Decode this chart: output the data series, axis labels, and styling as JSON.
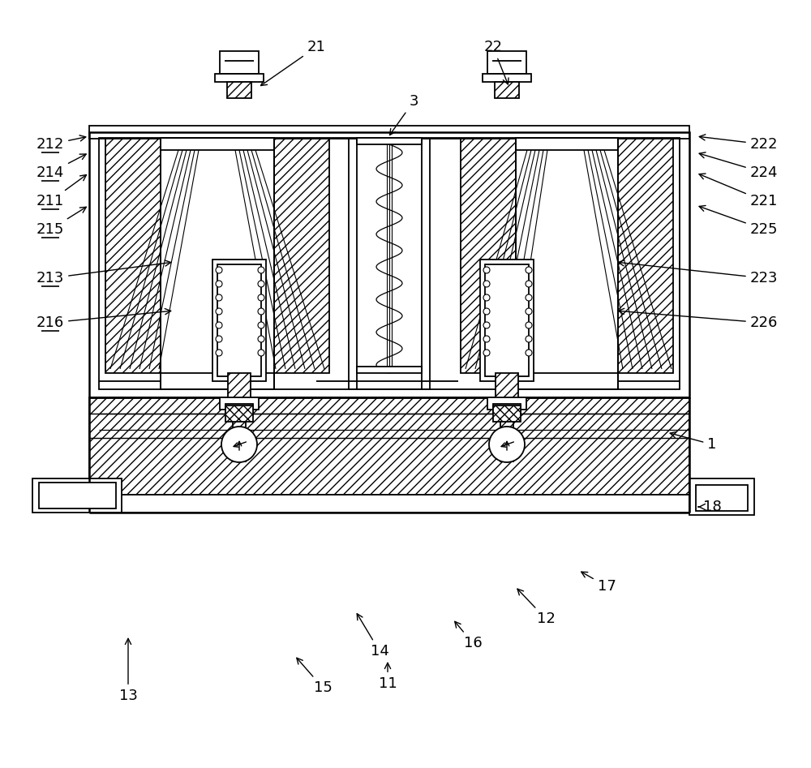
{
  "background": "#ffffff",
  "line_color": "#000000",
  "figsize": [
    10.0,
    9.47
  ],
  "dpi": 100,
  "underlined_labels": [
    "212",
    "214",
    "211",
    "215",
    "213",
    "216"
  ],
  "label_data": [
    [
      "21",
      390,
      58,
      318,
      108
    ],
    [
      "22",
      608,
      58,
      628,
      108
    ],
    [
      "3",
      510,
      125,
      478,
      170
    ],
    [
      "212",
      62,
      178,
      110,
      168
    ],
    [
      "214",
      62,
      213,
      110,
      188
    ],
    [
      "211",
      62,
      248,
      110,
      213
    ],
    [
      "215",
      62,
      283,
      110,
      253
    ],
    [
      "213",
      62,
      343,
      215,
      323
    ],
    [
      "216",
      62,
      398,
      215,
      383
    ],
    [
      "222",
      942,
      178,
      858,
      168
    ],
    [
      "224",
      942,
      213,
      858,
      188
    ],
    [
      "221",
      942,
      248,
      858,
      213
    ],
    [
      "225",
      942,
      283,
      858,
      253
    ],
    [
      "223",
      942,
      343,
      758,
      323
    ],
    [
      "226",
      942,
      398,
      758,
      383
    ],
    [
      "1",
      878,
      548,
      822,
      533
    ],
    [
      "18",
      878,
      625,
      858,
      625
    ],
    [
      "17",
      748,
      723,
      713,
      703
    ],
    [
      "12",
      673,
      763,
      635,
      723
    ],
    [
      "16",
      583,
      793,
      558,
      763
    ],
    [
      "14",
      468,
      803,
      438,
      753
    ],
    [
      "11",
      478,
      843,
      478,
      813
    ],
    [
      "15",
      398,
      848,
      363,
      808
    ],
    [
      "13",
      158,
      858,
      158,
      783
    ]
  ]
}
